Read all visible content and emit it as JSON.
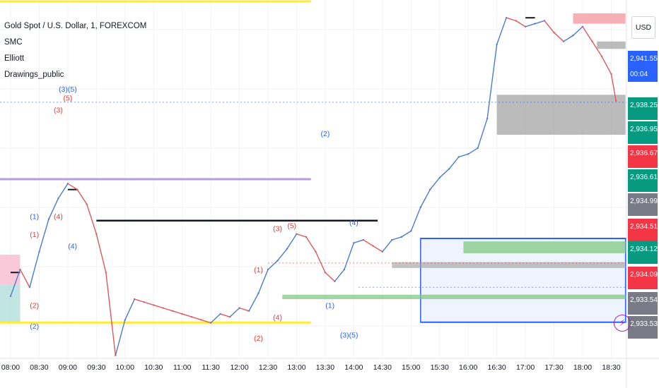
{
  "legend": {
    "symbol": "Gold Spot / U.S. Dollar, 1, FOREXCOM",
    "indicators": [
      "SMC",
      "Elliott",
      "Drawings_public"
    ]
  },
  "currency_button": "USD",
  "bolt_icon": "lightning-bolt-icon",
  "colors": {
    "up": "#4a7bd0",
    "down": "#e0575d",
    "blue_label": "#2962ff",
    "red_label": "#e53935",
    "yellow": "#ffeb3b",
    "lavender": "#b39ddb",
    "green_zone": "#81c784",
    "gray_zone": "#9e9e9e",
    "pink_zone": "#f8bbd0",
    "box_border": "#2962ff"
  },
  "chart_data": {
    "type": "line",
    "title": "Gold Spot / U.S. Dollar, 1, FOREXCOM",
    "x_tick_labels": [
      "08:00",
      "08:30",
      "09:00",
      "09:30",
      "10:00",
      "10:30",
      "11:00",
      "11:30",
      "12:00",
      "12:30",
      "13:00",
      "13:30",
      "14:00",
      "14:30",
      "15:00",
      "15:30",
      "16:00",
      "16:30",
      "17:00",
      "17:30",
      "18:00",
      "18:30"
    ],
    "price_tags": [
      {
        "text": "2,941.55",
        "kind": "blue",
        "price": 2941.55
      },
      {
        "text": "00:04",
        "kind": "blue-sub",
        "price": 2941.55
      },
      {
        "text": "2,938.25",
        "kind": "green",
        "price": 2938.25
      },
      {
        "text": "2,936.95",
        "kind": "green",
        "price": 2936.95
      },
      {
        "text": "2,936.67",
        "kind": "red",
        "price": 2936.67
      },
      {
        "text": "2,936.61",
        "kind": "green",
        "price": 2936.61
      },
      {
        "text": "2,934.99",
        "kind": "gray",
        "price": 2934.99
      },
      {
        "text": "2,934.51",
        "kind": "red",
        "price": 2934.51
      },
      {
        "text": "2,934.12",
        "kind": "green",
        "price": 2934.12
      },
      {
        "text": "2,934.09",
        "kind": "red",
        "price": 2934.09
      },
      {
        "text": "2,933.54",
        "kind": "gray",
        "price": 2933.54
      },
      {
        "text": "2,933.53",
        "kind": "gray",
        "price": 2933.53
      }
    ],
    "series": [
      {
        "x": [
          "08:00",
          "08:10",
          "08:20",
          "08:30",
          "08:40",
          "08:50",
          "09:00",
          "09:10",
          "09:20",
          "09:30",
          "09:40",
          "09:50",
          "10:00",
          "10:10",
          "10:20",
          "10:30",
          "10:40",
          "10:50",
          "11:00",
          "11:10",
          "11:20",
          "11:30",
          "11:40",
          "11:50",
          "12:00",
          "12:10",
          "12:20",
          "12:30",
          "12:40",
          "12:50",
          "13:00",
          "13:10",
          "13:20",
          "13:30",
          "13:40",
          "13:50",
          "14:00",
          "14:10",
          "14:20",
          "14:30",
          "14:40",
          "14:50",
          "15:00",
          "15:10",
          "15:20",
          "15:30",
          "15:40",
          "15:50",
          "16:00",
          "16:10",
          "16:20",
          "16:30",
          "16:40",
          "16:50",
          "17:00",
          "17:10",
          "17:20",
          "17:30",
          "17:40",
          "17:50",
          "18:00",
          "18:10",
          "18:20",
          "18:30",
          "18:35"
        ],
        "values": [
          2935.0,
          2935.9,
          2935.3,
          2936.5,
          2937.6,
          2938.3,
          2938.8,
          2938.6,
          2938.1,
          2937.1,
          2935.8,
          2933.0,
          2934.2,
          2934.9,
          2934.8,
          2934.7,
          2934.6,
          2934.5,
          2934.4,
          2934.3,
          2934.2,
          2934.1,
          2934.4,
          2934.3,
          2934.6,
          2934.5,
          2935.1,
          2935.9,
          2936.2,
          2936.6,
          2937.1,
          2937.0,
          2936.5,
          2935.8,
          2935.5,
          2935.9,
          2936.8,
          2936.9,
          2936.7,
          2936.5,
          2936.9,
          2937.0,
          2937.2,
          2938.0,
          2938.6,
          2939.0,
          2939.3,
          2939.7,
          2939.8,
          2940.0,
          2941.0,
          2943.5,
          2944.4,
          2944.3,
          2944.1,
          2944.2,
          2944.3,
          2943.9,
          2943.6,
          2943.8,
          2944.1,
          2943.6,
          2943.1,
          2942.5,
          2941.6
        ]
      }
    ],
    "elliott_labels": [
      {
        "text": "(3)(5)",
        "time": "09:00",
        "price": 2941.9,
        "color": "blue"
      },
      {
        "text": "(5)",
        "time": "09:00",
        "price": 2941.6,
        "color": "red"
      },
      {
        "text": "(3)",
        "time": "08:50",
        "price": 2941.2,
        "color": "red"
      },
      {
        "text": "(2)",
        "time": "13:30",
        "price": 2940.4,
        "color": "blue"
      },
      {
        "text": "(1)",
        "time": "08:25",
        "price": 2937.6,
        "color": "blue"
      },
      {
        "text": "(4)",
        "time": "08:50",
        "price": 2937.6,
        "color": "red"
      },
      {
        "text": "(1)",
        "time": "08:25",
        "price": 2937.0,
        "color": "red"
      },
      {
        "text": "(4)",
        "time": "09:05",
        "price": 2936.6,
        "color": "blue"
      },
      {
        "text": "(3)",
        "time": "12:40",
        "price": 2937.2,
        "color": "red"
      },
      {
        "text": "(5)",
        "time": "12:55",
        "price": 2937.3,
        "color": "red"
      },
      {
        "text": "(4)",
        "time": "14:00",
        "price": 2937.4,
        "color": "blue"
      },
      {
        "text": "(1)",
        "time": "12:20",
        "price": 2935.8,
        "color": "red"
      },
      {
        "text": "(2)",
        "time": "08:25",
        "price": 2934.6,
        "color": "red"
      },
      {
        "text": "(1)",
        "time": "13:35",
        "price": 2934.6,
        "color": "blue"
      },
      {
        "text": "(2)",
        "time": "08:25",
        "price": 2933.9,
        "color": "blue"
      },
      {
        "text": "(4)",
        "time": "12:40",
        "price": 2934.2,
        "color": "red"
      },
      {
        "text": "(3)(5)",
        "time": "13:55",
        "price": 2933.6,
        "color": "blue"
      },
      {
        "text": "(2)",
        "time": "12:20",
        "price": 2933.5,
        "color": "red"
      }
    ],
    "ylim": [
      2932.9,
      2945.0
    ],
    "grid": true,
    "legend_position": "top-left"
  }
}
